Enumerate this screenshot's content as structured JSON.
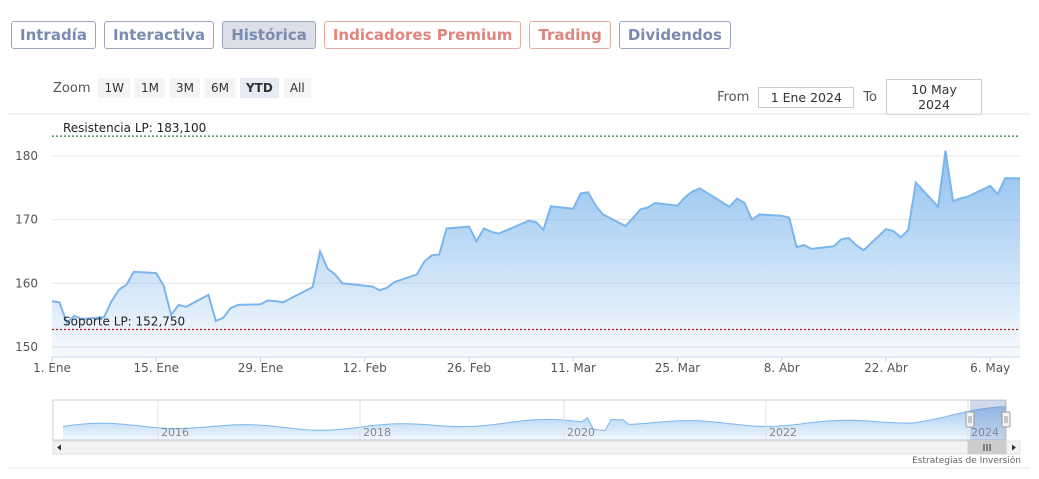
{
  "tabs": [
    {
      "label": "Intradía",
      "style": "blue"
    },
    {
      "label": "Interactiva",
      "style": "blue"
    },
    {
      "label": "Histórica",
      "style": "active"
    },
    {
      "label": "Indicadores Premium",
      "style": "red"
    },
    {
      "label": "Trading",
      "style": "red"
    },
    {
      "label": "Dividendos",
      "style": "blue"
    }
  ],
  "zoom": {
    "label": "Zoom",
    "buttons": [
      "1W",
      "1M",
      "3M",
      "6M",
      "YTD",
      "All"
    ],
    "selected": "YTD"
  },
  "range": {
    "from_label": "From",
    "from_value": "1 Ene 2024",
    "to_label": "To",
    "to_value": "10 May 2024"
  },
  "credit": "Estrategias de Inversión",
  "colors": {
    "line": "#7cb5ec",
    "fill_top": "#7cb5ec",
    "resistance": "#2e7d32",
    "support": "#b71c1c"
  },
  "chart_data": {
    "type": "area",
    "ylim": [
      150,
      185
    ],
    "yticks": [
      150,
      160,
      170,
      180
    ],
    "x_range": [
      "2024-01-01",
      "2024-05-10"
    ],
    "xticks": [
      {
        "date": "2024-01-01",
        "label": "1. Ene"
      },
      {
        "date": "2024-01-15",
        "label": "15. Ene"
      },
      {
        "date": "2024-01-29",
        "label": "29. Ene"
      },
      {
        "date": "2024-02-12",
        "label": "12. Feb"
      },
      {
        "date": "2024-02-26",
        "label": "26. Feb"
      },
      {
        "date": "2024-03-11",
        "label": "11. Mar"
      },
      {
        "date": "2024-03-25",
        "label": "25. Mar"
      },
      {
        "date": "2024-04-08",
        "label": "8. Abr"
      },
      {
        "date": "2024-04-22",
        "label": "22. Abr"
      },
      {
        "date": "2024-05-06",
        "label": "6. May"
      }
    ],
    "lines": [
      {
        "label": "Resistencia LP: 183,100",
        "value": 183.1,
        "kind": "resistance"
      },
      {
        "label": "Soporte LP: 152,750",
        "value": 152.75,
        "kind": "support"
      }
    ],
    "x": [
      "2024-01-01",
      "2024-01-02",
      "2024-01-03",
      "2024-01-04",
      "2024-01-05",
      "2024-01-08",
      "2024-01-09",
      "2024-01-10",
      "2024-01-11",
      "2024-01-12",
      "2024-01-15",
      "2024-01-16",
      "2024-01-17",
      "2024-01-18",
      "2024-01-19",
      "2024-01-22",
      "2024-01-23",
      "2024-01-24",
      "2024-01-25",
      "2024-01-26",
      "2024-01-29",
      "2024-01-30",
      "2024-01-31",
      "2024-02-01",
      "2024-02-02",
      "2024-02-05",
      "2024-02-06",
      "2024-02-07",
      "2024-02-08",
      "2024-02-09",
      "2024-02-12",
      "2024-02-13",
      "2024-02-14",
      "2024-02-15",
      "2024-02-16",
      "2024-02-19",
      "2024-02-20",
      "2024-02-21",
      "2024-02-22",
      "2024-02-23",
      "2024-02-26",
      "2024-02-27",
      "2024-02-28",
      "2024-02-29",
      "2024-03-01",
      "2024-03-04",
      "2024-03-05",
      "2024-03-06",
      "2024-03-07",
      "2024-03-08",
      "2024-03-11",
      "2024-03-12",
      "2024-03-13",
      "2024-03-14",
      "2024-03-15",
      "2024-03-18",
      "2024-03-19",
      "2024-03-20",
      "2024-03-21",
      "2024-03-22",
      "2024-03-25",
      "2024-03-26",
      "2024-03-27",
      "2024-03-28",
      "2024-04-01",
      "2024-04-02",
      "2024-04-03",
      "2024-04-04",
      "2024-04-05",
      "2024-04-08",
      "2024-04-09",
      "2024-04-10",
      "2024-04-11",
      "2024-04-12",
      "2024-04-15",
      "2024-04-16",
      "2024-04-17",
      "2024-04-18",
      "2024-04-19",
      "2024-04-22",
      "2024-04-23",
      "2024-04-24",
      "2024-04-25",
      "2024-04-26",
      "2024-04-29",
      "2024-04-30",
      "2024-05-01",
      "2024-05-02",
      "2024-05-03",
      "2024-05-06",
      "2024-05-07",
      "2024-05-08",
      "2024-05-09",
      "2024-05-10"
    ],
    "values": [
      157.2,
      157.0,
      153.8,
      154.9,
      154.4,
      154.7,
      157.2,
      159.0,
      159.8,
      161.8,
      161.6,
      159.6,
      155.0,
      156.6,
      156.3,
      158.2,
      154.1,
      154.6,
      156.1,
      156.6,
      156.7,
      157.3,
      157.2,
      157.0,
      157.6,
      159.4,
      165.0,
      162.3,
      161.4,
      160.0,
      159.6,
      159.5,
      158.9,
      159.3,
      160.2,
      161.4,
      163.4,
      164.4,
      164.5,
      168.6,
      168.9,
      166.6,
      168.6,
      168.1,
      167.8,
      169.3,
      169.8,
      169.6,
      168.4,
      172.1,
      171.7,
      174.1,
      174.3,
      172.2,
      170.8,
      169.0,
      170.2,
      171.6,
      171.9,
      172.6,
      172.2,
      173.5,
      174.4,
      174.9,
      172.0,
      173.3,
      172.6,
      170.0,
      170.8,
      170.6,
      170.3,
      165.7,
      166.0,
      165.4,
      165.8,
      166.9,
      167.1,
      166.0,
      165.2,
      168.5,
      168.2,
      167.2,
      168.4,
      175.8,
      172.0,
      180.8,
      172.9,
      173.3,
      173.6,
      175.3,
      174.0,
      176.5,
      176.5,
      176.5
    ],
    "navigator_labels": [
      "2016",
      "2018",
      "2020",
      "2022",
      "2024"
    ]
  }
}
